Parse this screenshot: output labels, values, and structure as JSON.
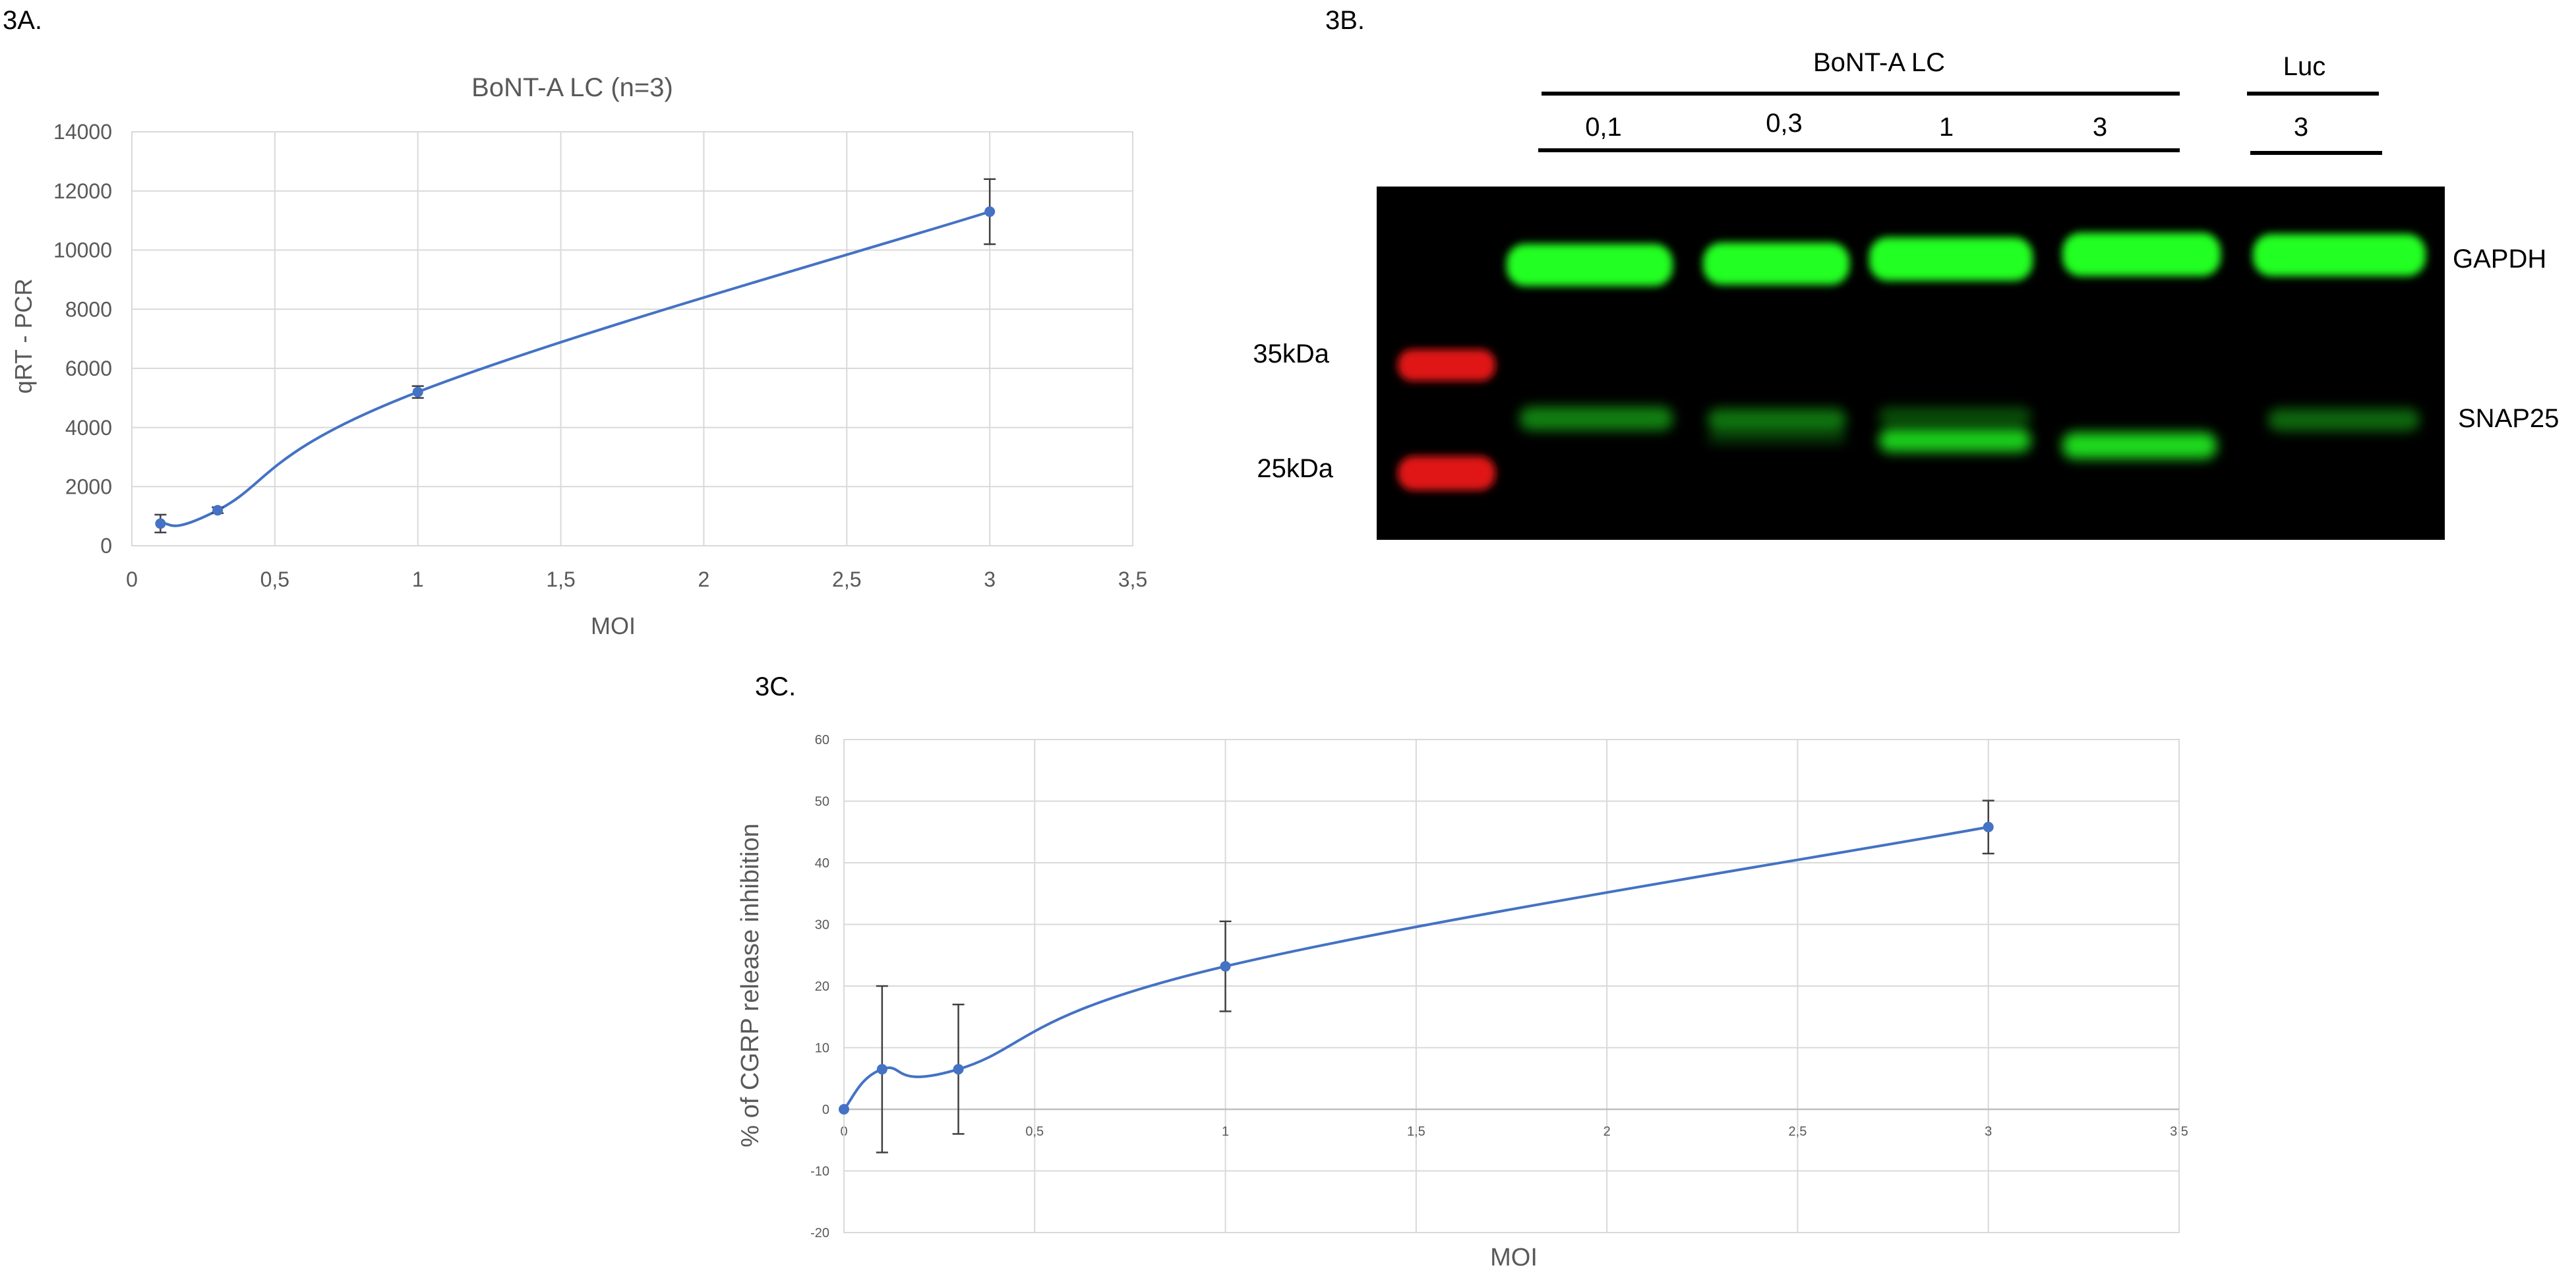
{
  "panels": {
    "a": "3A.",
    "b": "3B.",
    "c": "3C."
  },
  "chart_data": [
    {
      "type": "line",
      "title": "BoNT-A LC (n=3)",
      "xlabel": "MOI",
      "ylabel": "qRT - PCR",
      "xlim": [
        0,
        3.5
      ],
      "ylim": [
        0,
        14000
      ],
      "x_ticks": [
        "0",
        "0,5",
        "1",
        "1,5",
        "2",
        "2,5",
        "3",
        "3,5"
      ],
      "y_ticks": [
        "0",
        "2000",
        "4000",
        "6000",
        "8000",
        "10000",
        "12000",
        "14000"
      ],
      "grid": true,
      "smooth": true,
      "points": [
        {
          "x": 0.1,
          "y": 750,
          "err": 300
        },
        {
          "x": 0.3,
          "y": 1200,
          "err": 100
        },
        {
          "x": 1,
          "y": 5200,
          "err": 200
        },
        {
          "x": 3,
          "y": 11300,
          "err": 1100
        }
      ]
    },
    {
      "type": "line",
      "title": "",
      "xlabel": "MOI",
      "ylabel": "% of CGRP release inhibition",
      "xlim": [
        0,
        3.5
      ],
      "ylim": [
        -20,
        60
      ],
      "x_ticks": [
        "0",
        "0,5",
        "1",
        "1,5",
        "2",
        "2,5",
        "3",
        "3,5"
      ],
      "y_ticks": [
        "-20",
        "-10",
        "0",
        "10",
        "20",
        "30",
        "40",
        "50",
        "60"
      ],
      "grid": true,
      "smooth": true,
      "points": [
        {
          "x": 0,
          "y": 0,
          "err": 0
        },
        {
          "x": 0.1,
          "y": 6.5,
          "err": 13.5
        },
        {
          "x": 0.3,
          "y": 6.5,
          "err": 10.5
        },
        {
          "x": 1,
          "y": 23.2,
          "err": 7.3
        },
        {
          "x": 3,
          "y": 45.8,
          "err": 4.3
        }
      ]
    }
  ],
  "blot": {
    "group1_label": "BoNT-A LC",
    "group2_label": "Luc",
    "lanes": [
      "0,1",
      "0,3",
      "1",
      "3"
    ],
    "luc_lane": "3",
    "marker_top": "35kDa",
    "marker_bottom": "25kDa",
    "band_top": "GAPDH",
    "band_bottom": "SNAP25",
    "colors": {
      "background": "#000000",
      "band": "#22ff22",
      "marker": "#e01818"
    }
  }
}
